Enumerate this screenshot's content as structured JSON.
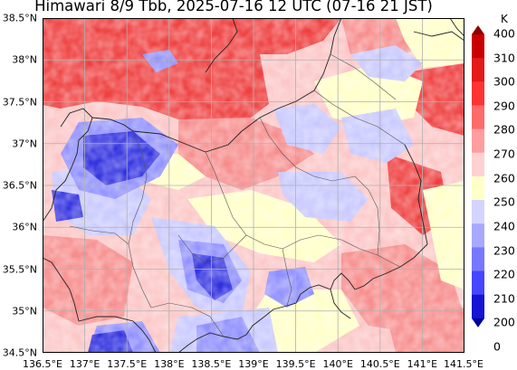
{
  "title": "Himawari 8/9 Tbb, 2025-07-16 12 UTC (07-16 21 JST)",
  "map": {
    "lon_range": [
      136.5,
      141.5
    ],
    "lat_range": [
      34.5,
      38.5
    ],
    "gridlines": true,
    "x_ticks": [
      "136.5°E",
      "137°E",
      "137.5°E",
      "138°E",
      "138.5°E",
      "139°E",
      "139.5°E",
      "140°E",
      "140.5°E",
      "141°E",
      "141.5°E"
    ],
    "y_ticks": [
      "34.5°N",
      "35°N",
      "35.5°N",
      "36°N",
      "36.5°N",
      "37°N",
      "37.5°N",
      "38°N",
      "38.5°N"
    ],
    "field": "Brightness temperature (Tbb) from Himawari 8/9",
    "coastline_color": "#222222",
    "prefecture_border_color": "#555555"
  },
  "colorbar": {
    "unit": "K",
    "levels": [
      "400",
      "310",
      "300",
      "290",
      "280",
      "270",
      "260",
      "250",
      "240",
      "230",
      "220",
      "210",
      "200",
      "0"
    ],
    "colors": [
      "#8b0000",
      "#c80000",
      "#e41a1a",
      "#ff3333",
      "#ff6b6b",
      "#ff9e9e",
      "#ffd1d1",
      "#ffffc8",
      "#d4d4ff",
      "#a8a8ff",
      "#7878ff",
      "#4646ff",
      "#1414d2",
      "#00009a"
    ]
  },
  "legend_colors": {
    "warm_high": "#ef4040",
    "warm_mid": "#f78c8c",
    "warm_low": "#fcc6c6",
    "neutral": "#ffffc8",
    "cool_low": "#c8c8ff",
    "cool_mid": "#8f8fff",
    "cool_high": "#3030e0"
  }
}
